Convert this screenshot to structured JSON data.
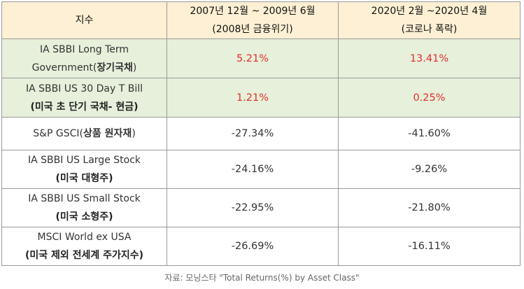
{
  "header": {
    "col1": "지수",
    "col2_line1": "2007년 12월 ~ 2009년 6월",
    "col2_line2": "(2008년 금융위기)",
    "col3_line1": "2020년 2월 ~2020년 4월",
    "col3_line2": "(코로나 폭락)"
  },
  "rows": [
    {
      "name_line1": "IA SBBI Long Term",
      "name_line2_prefix": "Government(",
      "name_line2_bold": "장기국채",
      "name_line2_suffix": ")",
      "val1": "5.21%",
      "val2": "13.41%"
    },
    {
      "name_line1": "IA SBBI US 30 Day T Bill",
      "name_line2": "(미국 초 단기 국채- 현금)",
      "val1": "1.21%",
      "val2": "0.25%"
    },
    {
      "name_prefix": "S&P GSCI(",
      "name_bold": "상품 원자재",
      "name_suffix": ")",
      "val1": "-27.34%",
      "val2": "-41.60%"
    },
    {
      "name_line1": "IA SBBI US Large Stock",
      "name_line2": "(미국 대형주)",
      "val1": "-24.16%",
      "val2": "-9.26%"
    },
    {
      "name_line1": "IA SBBI US Small Stock",
      "name_line2": "(미국 소형주)",
      "val1": "-22.95%",
      "val2": "-21.80%"
    },
    {
      "name_line1": "MSCI World ex USA",
      "name_line2": "(미국 제외 전세계 주가지수)",
      "val1": "-26.69%",
      "val2": "-16.11%"
    }
  ],
  "source": "자료: 모닝스타 \"Total Returns(%) by Asset Class\"",
  "colors": {
    "header_bg": "#fdf0d4",
    "highlight_bg": "#e6f0da",
    "positive_text": "#e02d2d",
    "border": "#9a9a9a"
  }
}
